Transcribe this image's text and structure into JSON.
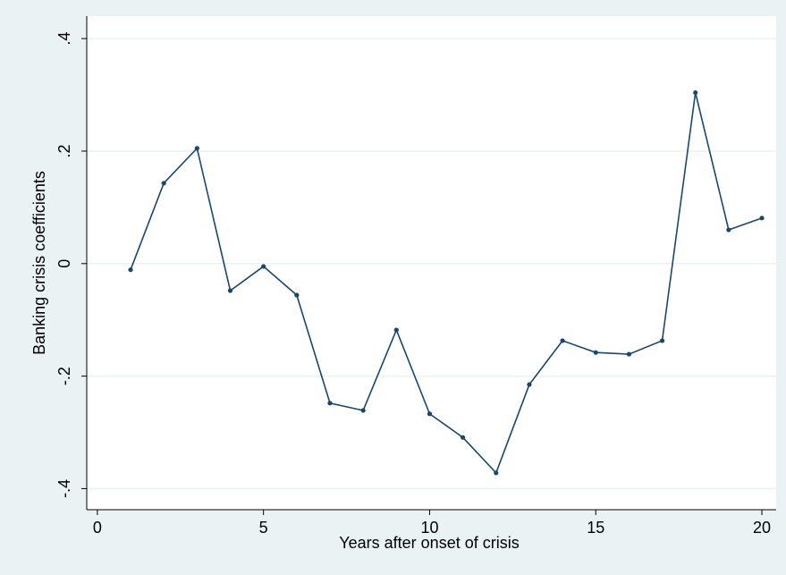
{
  "chart_data": {
    "type": "line",
    "x_label": "Years after onset of crisis",
    "y_label": "Banking crisis coefficients",
    "x": [
      1,
      2,
      3,
      4,
      5,
      6,
      7,
      8,
      9,
      10,
      11,
      12,
      13,
      14,
      15,
      16,
      17,
      18,
      19,
      20
    ],
    "series": [
      {
        "color": "#1a476f",
        "values": [
          -0.011,
          0.143,
          0.205,
          -0.048,
          -0.005,
          -0.056,
          -0.248,
          -0.261,
          -0.118,
          -0.267,
          -0.309,
          -0.372,
          -0.215,
          -0.137,
          -0.158,
          -0.161,
          -0.137,
          0.304,
          0.06,
          0.081
        ]
      }
    ],
    "xlim": [
      -0.32,
      20.43
    ],
    "xticks": [
      0,
      5,
      10,
      15,
      20
    ],
    "ylim": [
      -0.4375,
      0.44
    ],
    "yticks": [
      {
        "value": -0.4,
        "label": "-.4"
      },
      {
        "value": -0.2,
        "label": "-.2"
      },
      0,
      {
        "value": 0.2,
        "label": ".2"
      },
      {
        "value": 0.4,
        "label": ".4"
      }
    ],
    "grid": true
  }
}
